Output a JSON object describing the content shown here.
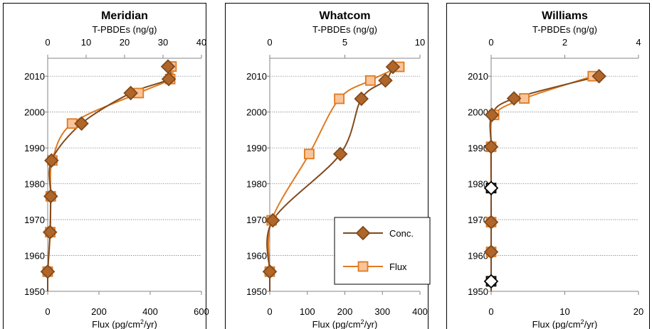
{
  "chart_data": [
    {
      "type": "line",
      "title": "Meridian",
      "top_axis_label": "T-PBDEs (ng/g)",
      "bottom_axis_label_prefix": "Flux (pg/cm",
      "bottom_axis_label_sup": "2",
      "bottom_axis_label_suffix": "/yr)",
      "ylim": [
        1950,
        2015
      ],
      "yticks": [
        1950,
        1960,
        1970,
        1980,
        1990,
        2000,
        2010
      ],
      "top_xlim": [
        0,
        40
      ],
      "top_xticks": [
        0,
        10,
        20,
        30,
        40
      ],
      "bottom_xlim": [
        0,
        600
      ],
      "bottom_xticks": [
        0,
        200,
        400,
        600
      ],
      "series": [
        {
          "name": "Conc.",
          "axis": "top",
          "marker": "diamond",
          "color": "#7f4a1e",
          "fill": "#b0662a",
          "points": [
            [
              0,
              1955.5
            ],
            [
              0.6,
              1966.5
            ],
            [
              0.8,
              1976.5
            ],
            [
              1.0,
              1986.5
            ],
            [
              8.8,
              1996.8
            ],
            [
              21.6,
              2005.3
            ],
            [
              31.5,
              2009.2
            ],
            [
              31.3,
              2012.7
            ]
          ],
          "hollow": []
        },
        {
          "name": "Flux",
          "axis": "bottom",
          "marker": "square",
          "color": "#e07a1f",
          "fill": "#f9c49a",
          "points": [
            [
              0,
              1955.5
            ],
            [
              10,
              1966.5
            ],
            [
              12,
              1976.5
            ],
            [
              18,
              1986.5
            ],
            [
              95,
              1996.8
            ],
            [
              355,
              2005.3
            ],
            [
              478,
              2009.2
            ],
            [
              483,
              2012.7
            ]
          ],
          "hollow": []
        }
      ]
    },
    {
      "type": "line",
      "title": "Whatcom",
      "top_axis_label": "T-PBDEs (ng/g)",
      "bottom_axis_label_prefix": "Flux (pg/cm",
      "bottom_axis_label_sup": "2",
      "bottom_axis_label_suffix": "/yr)",
      "ylim": [
        1950,
        2015
      ],
      "yticks": [
        1950,
        1960,
        1970,
        1980,
        1990,
        2000,
        2010
      ],
      "top_xlim": [
        0,
        10
      ],
      "top_xticks": [
        0,
        5,
        10
      ],
      "bottom_xlim": [
        0,
        400
      ],
      "bottom_xticks": [
        0,
        100,
        200,
        300,
        400
      ],
      "series": [
        {
          "name": "Conc.",
          "axis": "top",
          "marker": "diamond",
          "color": "#7f4a1e",
          "fill": "#b0662a",
          "points": [
            [
              0,
              1955.5
            ],
            [
              0.2,
              1969.8
            ],
            [
              4.7,
              1988.3
            ],
            [
              6.1,
              2003.7
            ],
            [
              7.7,
              2008.8
            ],
            [
              8.2,
              2012.6
            ]
          ],
          "hollow": []
        },
        {
          "name": "Flux",
          "axis": "bottom",
          "marker": "square",
          "color": "#e07a1f",
          "fill": "#f9c49a",
          "points": [
            [
              0,
              1955.5
            ],
            [
              5,
              1969.8
            ],
            [
              105,
              1988.3
            ],
            [
              185,
              2003.7
            ],
            [
              268,
              2008.8
            ],
            [
              345,
              2012.6
            ]
          ],
          "hollow": []
        }
      ],
      "legend": [
        {
          "label": "Conc.",
          "marker": "diamond",
          "color": "#7f4a1e",
          "fill": "#b0662a"
        },
        {
          "label": "Flux",
          "marker": "square",
          "color": "#e07a1f",
          "fill": "#f9c49a"
        }
      ]
    },
    {
      "type": "line",
      "title": "Williams",
      "top_axis_label": "T-PBDEs (ng/g)",
      "bottom_axis_label_prefix": "Flux (pg/cm",
      "bottom_axis_label_sup": "2",
      "bottom_axis_label_suffix": "/yr)",
      "ylim": [
        1950,
        2015
      ],
      "yticks": [
        1950,
        1960,
        1970,
        1980,
        1990,
        2000,
        2010
      ],
      "top_xlim": [
        0,
        4
      ],
      "top_xticks": [
        0,
        2,
        4
      ],
      "bottom_xlim": [
        0,
        20
      ],
      "bottom_xticks": [
        0,
        10,
        20
      ],
      "series": [
        {
          "name": "Conc.",
          "axis": "top",
          "marker": "diamond",
          "color": "#7f4a1e",
          "fill": "#b0662a",
          "points": [
            [
              0,
              1952.8
            ],
            [
              0,
              1961
            ],
            [
              0,
              1969.3
            ],
            [
              0,
              1978.8
            ],
            [
              0,
              1990.3
            ],
            [
              0.02,
              1999.2
            ],
            [
              0.62,
              2003.8
            ],
            [
              2.93,
              2010
            ]
          ],
          "hollow": [
            0,
            3
          ]
        },
        {
          "name": "Flux",
          "axis": "bottom",
          "marker": "square",
          "color": "#e07a1f",
          "fill": "#f9c49a",
          "points": [
            [
              0,
              1952.8
            ],
            [
              0,
              1961
            ],
            [
              0,
              1969.3
            ],
            [
              0,
              1978.8
            ],
            [
              0,
              1990.3
            ],
            [
              0.4,
              1999.2
            ],
            [
              4.5,
              2003.8
            ],
            [
              13.8,
              2010
            ]
          ],
          "hollow": [
            0,
            3
          ]
        }
      ]
    }
  ]
}
